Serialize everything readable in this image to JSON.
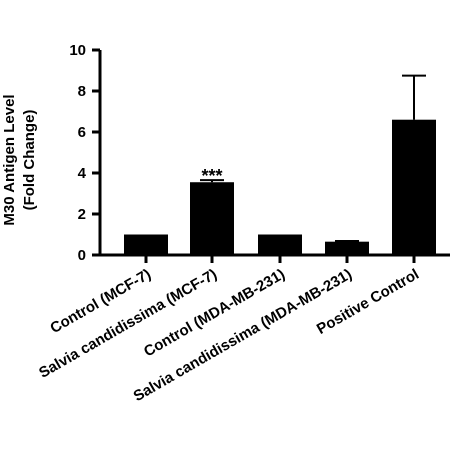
{
  "chart_data": {
    "type": "bar",
    "title": "",
    "ylabel_line1": "M30 Antigen Level",
    "ylabel_line2": "(Fold Change)",
    "xlabel": "",
    "ylim": [
      0,
      10
    ],
    "yticks": [
      0,
      2,
      4,
      6,
      8,
      10
    ],
    "ytick_labels": [
      "0",
      "2",
      "4",
      "6",
      "8",
      "10"
    ],
    "categories": [
      "Control (MCF-7)",
      "Salvia candidissima (MCF-7)",
      "Control (MDA-MB-231)",
      "Salvia candidissima (MDA-MB-231)",
      "Positive Control"
    ],
    "values": [
      1.0,
      3.55,
      1.0,
      0.65,
      6.6
    ],
    "errors": [
      0.0,
      0.1,
      0.0,
      0.03,
      2.15
    ],
    "annotations": [
      "",
      "***",
      "",
      "",
      ""
    ],
    "bar_color": "#000000",
    "grid": false,
    "legend": "none"
  }
}
